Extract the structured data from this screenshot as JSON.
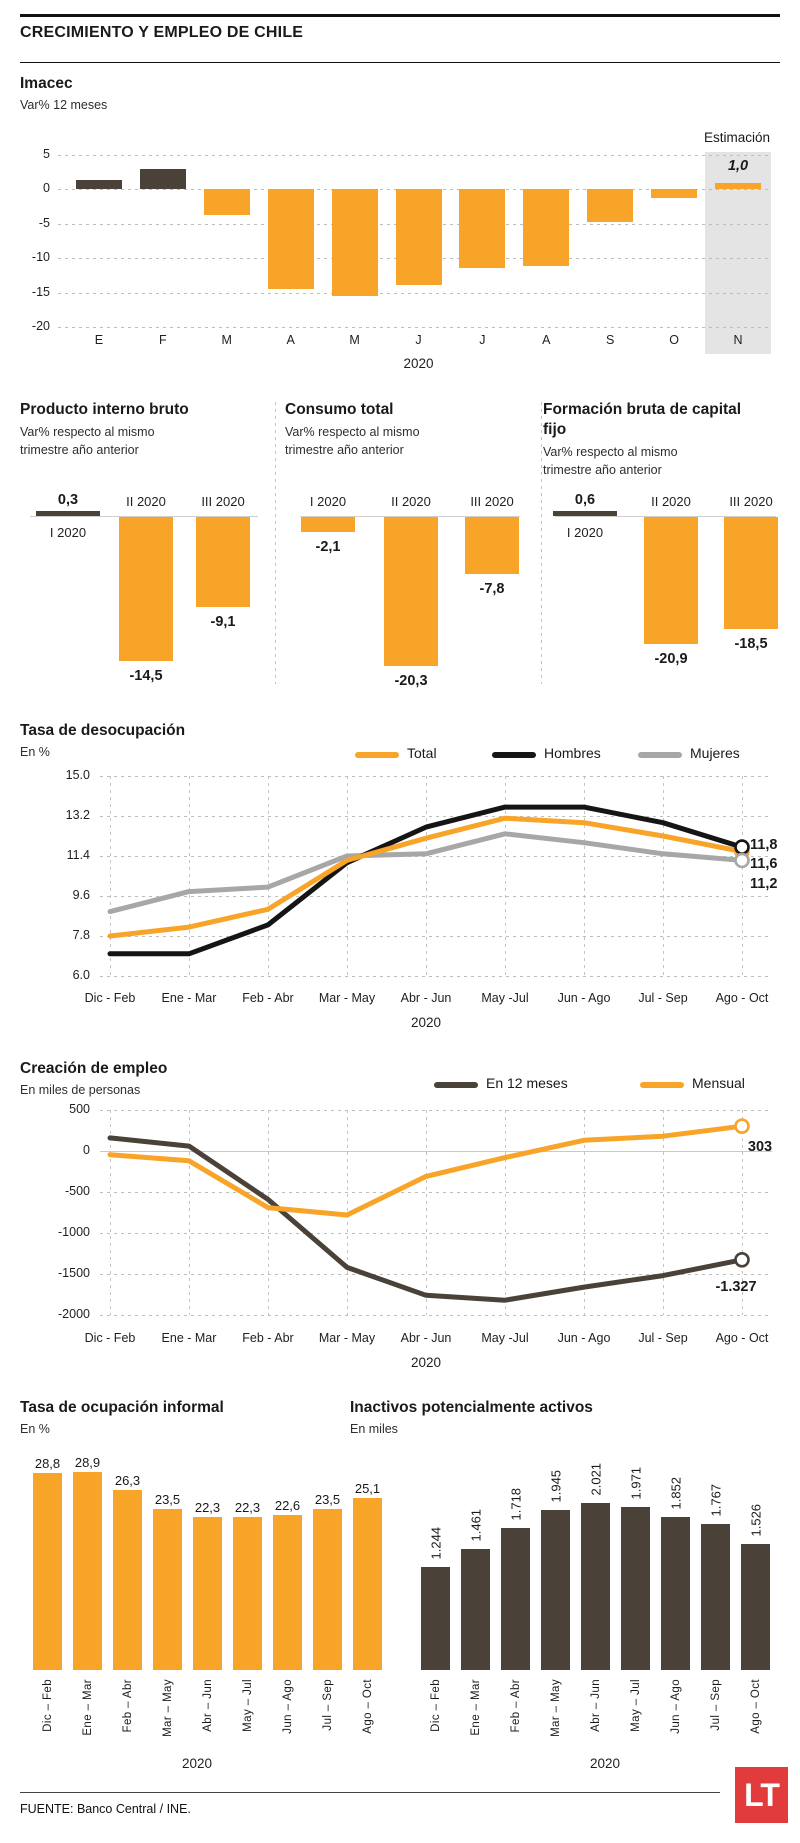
{
  "header": {
    "title": "CRECIMIENTO Y EMPLEO DE CHILE"
  },
  "footer": {
    "source": "FUENTE: Banco Central / INE.",
    "logo_text": "LT"
  },
  "colors": {
    "orange": "#F7A429",
    "dark": "#4A4238",
    "black_line": "#151515",
    "gray_line": "#A7A7A7",
    "band": "#E4E4E4",
    "logo_red": "#E23B3C"
  },
  "chart_data": [
    {
      "id": "imacec",
      "type": "bar",
      "title": "Imacec",
      "subtitle": "Var% 12 meses",
      "categories": [
        "E",
        "F",
        "M",
        "A",
        "M",
        "J",
        "J",
        "A",
        "S",
        "O",
        "N"
      ],
      "values": [
        1.4,
        3.0,
        -3.7,
        -14.5,
        -15.5,
        -13.9,
        -11.4,
        -11.2,
        -4.8,
        -1.2,
        1.0
      ],
      "dark_bars": [
        0,
        1
      ],
      "xlabel": "2020",
      "yticks": [
        5,
        0,
        -5,
        -10,
        -15,
        -20
      ],
      "ylim": [
        -20,
        5
      ],
      "estimation": {
        "label": "Estimación",
        "category": "N",
        "value_label": "1,0"
      }
    },
    {
      "id": "pib",
      "type": "bar",
      "title": "Producto interno bruto",
      "subtitle": "Var% respecto al mismo trimestre año anterior",
      "categories": [
        "I 2020",
        "II 2020",
        "III 2020"
      ],
      "values": [
        0.3,
        -14.5,
        -9.1
      ],
      "value_labels": [
        "0,3",
        "-14,5",
        "-9,1"
      ]
    },
    {
      "id": "consumo",
      "type": "bar",
      "title": "Consumo total",
      "subtitle": "Var% respecto al mismo trimestre año anterior",
      "categories": [
        "I 2020",
        "II 2020",
        "III 2020"
      ],
      "values": [
        -2.1,
        -20.3,
        -7.8
      ],
      "value_labels": [
        "-2,1",
        "-20,3",
        "-7,8"
      ]
    },
    {
      "id": "fbcf",
      "type": "bar",
      "title": "Formación bruta de capital fijo",
      "subtitle": "Var% respecto al mismo trimestre año anterior",
      "categories": [
        "I 2020",
        "II 2020",
        "III 2020"
      ],
      "values": [
        0.6,
        -20.9,
        -18.5
      ],
      "value_labels": [
        "0,6",
        "-20,9",
        "-18,5"
      ]
    },
    {
      "id": "desocupacion",
      "type": "line",
      "title": "Tasa de desocupación",
      "subtitle": "En %",
      "xlabel": "2020",
      "categories": [
        "Dic - Feb",
        "Ene - Mar",
        "Feb - Abr",
        "Mar - May",
        "Abr - Jun",
        "May -Jul",
        "Jun - Ago",
        "Jul - Sep",
        "Ago - Oct"
      ],
      "yticks": [
        "15.0",
        "13.2",
        "11.4",
        "9.6",
        "7.8",
        "6.0"
      ],
      "ylim": [
        6.0,
        15.0
      ],
      "series": [
        {
          "name": "Total",
          "color": "#F7A429",
          "values": [
            7.8,
            8.2,
            9.0,
            11.2,
            12.2,
            13.1,
            12.9,
            12.3,
            11.6
          ],
          "end_label": "11,6"
        },
        {
          "name": "Hombres",
          "color": "#151515",
          "values": [
            7.0,
            7.0,
            8.3,
            11.1,
            12.7,
            13.6,
            13.6,
            12.9,
            11.8
          ],
          "end_label": "11,8"
        },
        {
          "name": "Mujeres",
          "color": "#A7A7A7",
          "values": [
            8.9,
            9.8,
            10.0,
            11.4,
            11.5,
            12.4,
            12.0,
            11.5,
            11.2
          ],
          "end_label": "11,2"
        }
      ]
    },
    {
      "id": "empleo",
      "type": "line",
      "title": "Creación de empleo",
      "subtitle": "En miles de personas",
      "xlabel": "2020",
      "categories": [
        "Dic - Feb",
        "Ene - Mar",
        "Feb - Abr",
        "Mar - May",
        "Abr - Jun",
        "May -Jul",
        "Jun - Ago",
        "Jul - Sep",
        "Ago - Oct"
      ],
      "yticks": [
        "500",
        "0",
        "-500",
        "-1000",
        "-1500",
        "-2000"
      ],
      "ylim": [
        -2000,
        500
      ],
      "series": [
        {
          "name": "En 12 meses",
          "color": "#4A4238",
          "values": [
            160,
            60,
            -590,
            -1420,
            -1760,
            -1820,
            -1660,
            -1520,
            -1327
          ],
          "end_label": "-1.327"
        },
        {
          "name": "Mensual",
          "color": "#F7A429",
          "values": [
            -45,
            -120,
            -690,
            -780,
            -310,
            -80,
            130,
            180,
            303
          ],
          "end_label": "303"
        }
      ]
    },
    {
      "id": "informal",
      "type": "bar",
      "title": "Tasa de ocupación informal",
      "subtitle": "En %",
      "xlabel": "2020",
      "categories": [
        "Dic – Feb",
        "Ene – Mar",
        "Feb – Abr",
        "Mar – May",
        "Abr – Jun",
        "May – Jul",
        "Jun – Ago",
        "Jul – Sep",
        "Ago – Oct"
      ],
      "values": [
        28.8,
        28.9,
        26.3,
        23.5,
        22.3,
        22.3,
        22.6,
        23.5,
        25.1
      ],
      "value_labels": [
        "28,8",
        "28,9",
        "26,3",
        "23,5",
        "22,3",
        "22,3",
        "22,6",
        "23,5",
        "25,1"
      ]
    },
    {
      "id": "inactivos",
      "type": "bar",
      "title": "Inactivos potencialmente activos",
      "subtitle": "En miles",
      "xlabel": "2020",
      "categories": [
        "Dic – Feb",
        "Ene – Mar",
        "Feb – Abr",
        "Mar – May",
        "Abr – Jun",
        "May – Jul",
        "Jun – Ago",
        "Jul – Sep",
        "Ago – Oct"
      ],
      "values": [
        1244,
        1461,
        1718,
        1945,
        2021,
        1971,
        1852,
        1767,
        1526
      ],
      "value_labels": [
        "1.244",
        "1.461",
        "1.718",
        "1.945",
        "2.021",
        "1.971",
        "1.852",
        "1.767",
        "1.526"
      ]
    }
  ]
}
